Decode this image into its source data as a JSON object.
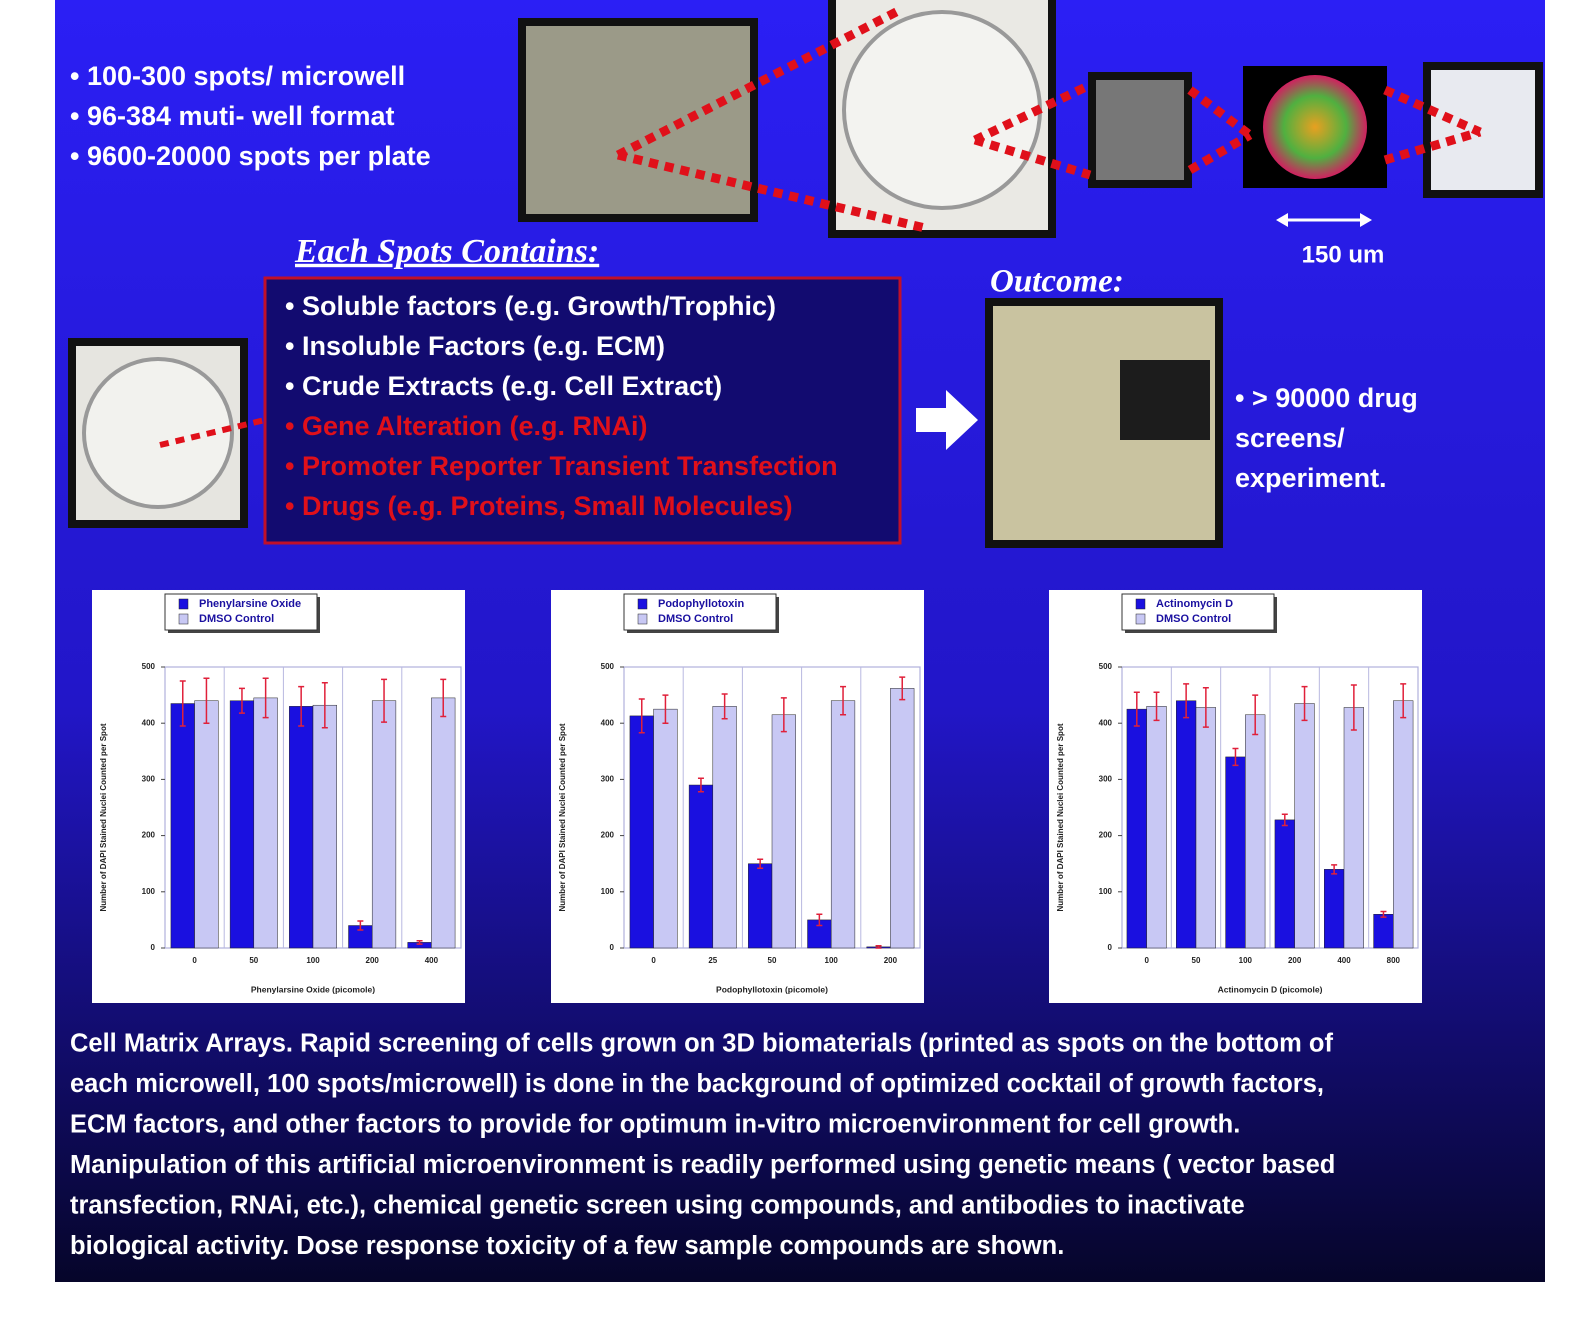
{
  "bullets": [
    "• 100-300 spots/ microwell",
    "• 96-384 muti- well format",
    "• 9600-20000 spots per plate"
  ],
  "scale_label": "150 um",
  "spots": {
    "title": "Each Spots Contains:",
    "items": [
      {
        "text": "• Soluble factors (e.g. Growth/Trophic)",
        "color": "#ffffff"
      },
      {
        "text": "• Insoluble Factors (e.g. ECM)",
        "color": "#ffffff"
      },
      {
        "text": "• Crude Extracts (e.g. Cell Extract)",
        "color": "#ffffff"
      },
      {
        "text": "• Gene Alteration (e.g. RNAi)",
        "color": "#e0101a"
      },
      {
        "text": "• Promoter Reporter Transient Transfection",
        "color": "#e0101a"
      },
      {
        "text": "• Drugs (e.g. Proteins, Small Molecules)",
        "color": "#e0101a"
      }
    ]
  },
  "outcome": {
    "title": "Outcome:",
    "text": [
      "• > 90000  drug",
      "screens/",
      "experiment."
    ]
  },
  "chart_data": [
    {
      "type": "bar",
      "y_label": "Number of DAPI Stained Nuclei Counted per Spot",
      "x_label": "Phenylarsine Oxide (picomole)",
      "categories": [
        "0",
        "50",
        "100",
        "200",
        "400"
      ],
      "series": [
        {
          "name": "Phenylarsine Oxide",
          "color": "#1a10e0",
          "values": [
            435,
            440,
            430,
            40,
            10
          ],
          "errors": [
            40,
            22,
            35,
            8,
            3
          ]
        },
        {
          "name": "DMSO Control",
          "color": "#c8c8f4",
          "values": [
            440,
            445,
            432,
            440,
            445
          ],
          "errors": [
            40,
            35,
            40,
            38,
            33
          ]
        }
      ],
      "ylim": [
        0,
        500
      ],
      "yticks": [
        0,
        100,
        200,
        300,
        400,
        500
      ],
      "grid": false,
      "legend": "upper left"
    },
    {
      "type": "bar",
      "y_label": "Number of DAPI Stained Nuclei Counted per Spot",
      "x_label": "Podophyllotoxin (picomole)",
      "categories": [
        "0",
        "25",
        "50",
        "100",
        "200"
      ],
      "series": [
        {
          "name": "Podophyllotoxin",
          "color": "#1a10e0",
          "values": [
            413,
            290,
            150,
            50,
            2
          ],
          "errors": [
            30,
            12,
            8,
            10,
            2
          ]
        },
        {
          "name": "DMSO Control",
          "color": "#c8c8f4",
          "values": [
            425,
            430,
            415,
            440,
            462
          ],
          "errors": [
            25,
            22,
            30,
            25,
            20
          ]
        }
      ],
      "ylim": [
        0,
        500
      ],
      "yticks": [
        0,
        100,
        200,
        300,
        400,
        500
      ],
      "grid": false,
      "legend": "upper left"
    },
    {
      "type": "bar",
      "y_label": "Number of DAPI Stained Nuclei Counted per Spot",
      "x_label": "Actinomycin D (picomole)",
      "categories": [
        "0",
        "50",
        "100",
        "200",
        "400",
        "800"
      ],
      "series": [
        {
          "name": "Actinomycin D",
          "color": "#1a10e0",
          "values": [
            425,
            440,
            340,
            228,
            140,
            60
          ],
          "errors": [
            30,
            30,
            15,
            10,
            8,
            5
          ]
        },
        {
          "name": "DMSO Control",
          "color": "#c8c8f4",
          "values": [
            430,
            428,
            415,
            435,
            428,
            440
          ],
          "errors": [
            25,
            35,
            35,
            30,
            40,
            30
          ]
        }
      ],
      "ylim": [
        0,
        500
      ],
      "yticks": [
        0,
        100,
        200,
        300,
        400,
        500
      ],
      "grid": false,
      "legend": "upper left"
    }
  ],
  "caption": [
    "Cell Matrix Arrays. Rapid screening of cells grown on 3D biomaterials  (printed as spots on the bottom of",
    "each microwell, 100 spots/microwell) is done in the background of optimized cocktail of growth factors,",
    "ECM factors, and other factors to provide for optimum in-vitro microenvironment for cell growth.",
    "Manipulation of this artificial microenvironment is readily performed using genetic means ( vector based",
    "transfection, RNAi, etc.), chemical genetic screen using compounds, and antibodies to inactivate",
    "biological activity. Dose response toxicity of a few sample compounds are shown."
  ]
}
